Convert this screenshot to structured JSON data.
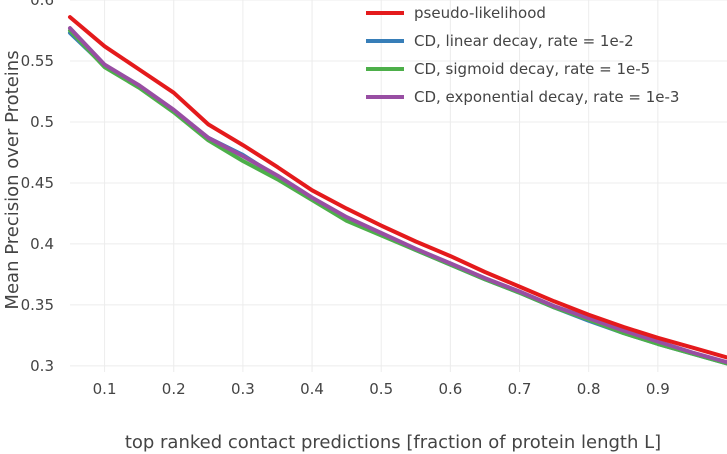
{
  "chart_data": {
    "type": "line",
    "title": "",
    "xlabel": "top ranked contact predictions [fraction of protein length L]",
    "ylabel": "Mean Precision over Proteins",
    "xlim": [
      0.05,
      1.0
    ],
    "ylim": [
      0.295,
      0.6
    ],
    "xticks": [
      "0.1",
      "0.2",
      "0.3",
      "0.4",
      "0.5",
      "0.6",
      "0.7",
      "0.8",
      "0.9"
    ],
    "yticks": [
      "0.3",
      "0.35",
      "0.4",
      "0.45",
      "0.5",
      "0.55",
      "0.6"
    ],
    "grid": true,
    "legend_position": "top-right",
    "x": [
      0.05,
      0.1,
      0.15,
      0.2,
      0.25,
      0.3,
      0.35,
      0.4,
      0.45,
      0.5,
      0.55,
      0.6,
      0.65,
      0.7,
      0.75,
      0.8,
      0.85,
      0.9,
      0.95,
      1.0
    ],
    "series": [
      {
        "name": "pseudo-likelihood",
        "color": "#e41a1c",
        "values": [
          0.586,
          0.562,
          0.543,
          0.524,
          0.498,
          0.481,
          0.463,
          0.444,
          0.429,
          0.415,
          0.402,
          0.39,
          0.377,
          0.365,
          0.353,
          0.342,
          0.332,
          0.323,
          0.315,
          0.307
        ]
      },
      {
        "name": "CD, linear decay, rate = 1e-2",
        "color": "#377eb8",
        "values": [
          0.573,
          0.546,
          0.529,
          0.509,
          0.487,
          0.473,
          0.455,
          0.437,
          0.421,
          0.408,
          0.395,
          0.383,
          0.371,
          0.36,
          0.348,
          0.337,
          0.327,
          0.318,
          0.31,
          0.302
        ]
      },
      {
        "name": "CD, sigmoid decay, rate = 1e-5",
        "color": "#4daf4a",
        "values": [
          0.575,
          0.545,
          0.528,
          0.508,
          0.485,
          0.468,
          0.453,
          0.436,
          0.419,
          0.407,
          0.395,
          0.383,
          0.371,
          0.36,
          0.348,
          0.338,
          0.327,
          0.318,
          0.31,
          0.302
        ]
      },
      {
        "name": "CD, exponential decay, rate = 1e-3",
        "color": "#984ea3",
        "values": [
          0.577,
          0.547,
          0.53,
          0.51,
          0.487,
          0.472,
          0.456,
          0.438,
          0.422,
          0.409,
          0.396,
          0.384,
          0.372,
          0.361,
          0.349,
          0.339,
          0.329,
          0.32,
          0.311,
          0.303
        ]
      }
    ]
  }
}
